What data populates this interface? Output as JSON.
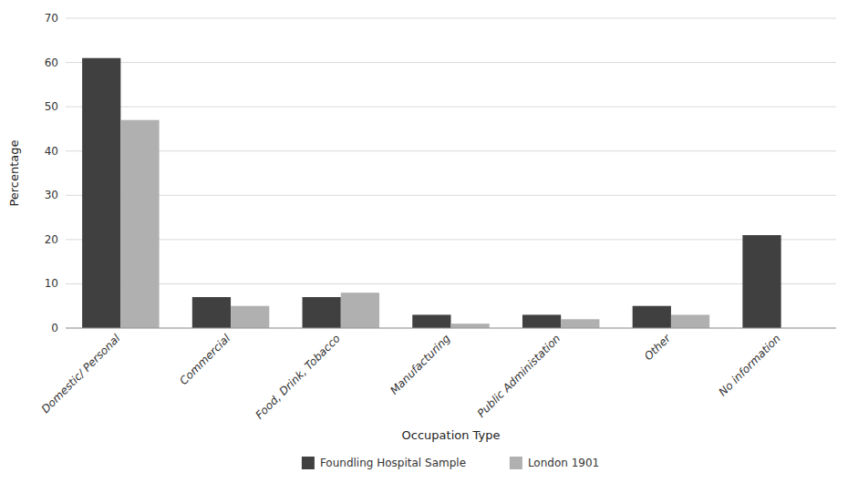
{
  "chart_data": {
    "type": "bar",
    "xlabel": "Occupation Type",
    "ylabel": "Percentage",
    "categories": [
      "Domestic/ Personal",
      "Commercial",
      "Food, Drink, Tobacco",
      "Manufacturing",
      "Public Administation",
      "Other",
      "No information"
    ],
    "series": [
      {
        "name": "Foundling Hospital Sample",
        "color": "#404040",
        "values": [
          61,
          7,
          7,
          3,
          3,
          5,
          21
        ]
      },
      {
        "name": "London 1901",
        "color": "#b0b0b0",
        "values": [
          47,
          5,
          8,
          1,
          2,
          3,
          0
        ]
      }
    ],
    "ylim": [
      0,
      70
    ],
    "yticks": [
      0,
      10,
      20,
      30,
      40,
      50,
      60,
      70
    ],
    "grid": true,
    "legend": "bottom"
  }
}
